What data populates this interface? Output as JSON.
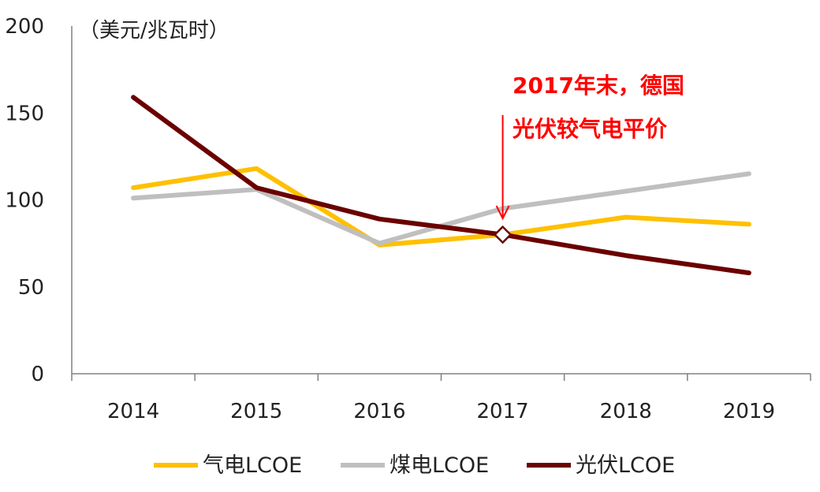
{
  "chart_data": {
    "type": "line",
    "title": "",
    "xlabel": "",
    "ylabel": "",
    "unit_label": "（美元/兆瓦时）",
    "x": [
      "2014",
      "2015",
      "2016",
      "2017",
      "2018",
      "2019"
    ],
    "ylim": [
      0,
      200
    ],
    "yticks": [
      "0",
      "50",
      "100",
      "150",
      "200"
    ],
    "grid": false,
    "legend_position": "bottom",
    "series": [
      {
        "name": "气电LCOE",
        "values": [
          107,
          118,
          74,
          80,
          90,
          86
        ],
        "color": "#FFC000"
      },
      {
        "name": "煤电LCOE",
        "values": [
          101,
          106,
          75,
          95,
          105,
          115
        ],
        "color": "#BFBFBF"
      },
      {
        "name": "光伏LCOE",
        "values": [
          159,
          107,
          89,
          80,
          68,
          58
        ],
        "color": "#6B0000"
      }
    ],
    "annotation": {
      "line1": "2017年末，德国",
      "line2": "光伏较气电平价",
      "color": "#FF0000",
      "points_to_x": "2017",
      "points_to_y": 80
    }
  }
}
